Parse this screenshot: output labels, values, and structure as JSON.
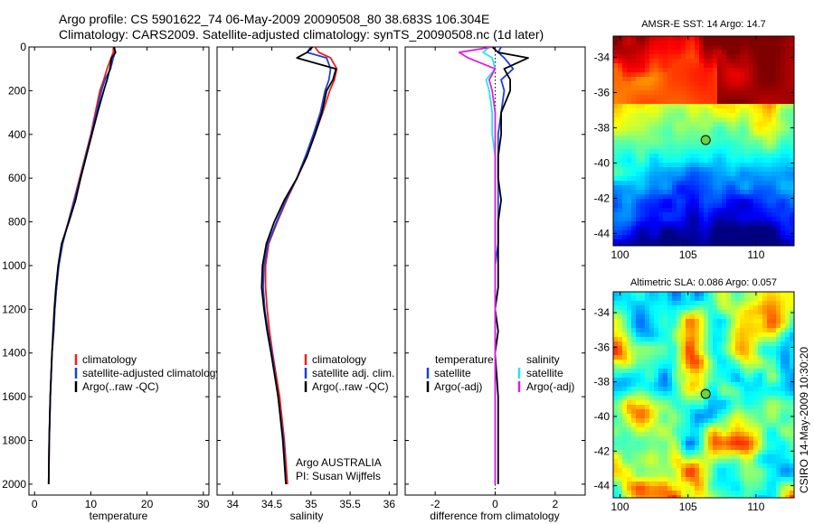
{
  "header": {
    "line1": "Argo profile: CS 5901622_74 06-May-2009 20090508_80 38.683S 106.304E",
    "line2": "Climatology: CARS2009. Satellite-adjusted climatology: synTS_20090508.nc (1d later)"
  },
  "side_label": "CSIRO 14-May-2009 10:30:20",
  "colors": {
    "red": "#e8221c",
    "blue": "#1f3fd8",
    "black": "#000000",
    "cyan": "#22e6f0",
    "magenta": "#e01de0"
  },
  "chart_data": [
    {
      "type": "line",
      "xlabel": "temperature",
      "xlim": [
        -1,
        31
      ],
      "ylim": [
        0,
        2050
      ],
      "xticks": [
        0,
        10,
        20,
        30
      ],
      "yticks": [
        0,
        200,
        400,
        600,
        800,
        1000,
        1200,
        1400,
        1600,
        1800,
        2000
      ],
      "y_reversed": true,
      "legend": [
        "climatology",
        "satellite-adjusted climatology",
        "Argo(..raw -QC)"
      ],
      "series": [
        {
          "name": "climatology",
          "color": "red",
          "x": [
            14.0,
            14.0,
            13.6,
            12.9,
            12.3,
            11.6,
            10.8,
            10.0,
            9.0,
            8.0,
            7.0,
            6.0,
            4.9,
            4.3,
            3.9,
            3.6,
            3.4,
            3.1,
            2.8,
            2.6,
            2.5
          ],
          "y": [
            0,
            25,
            50,
            100,
            150,
            200,
            300,
            400,
            500,
            600,
            700,
            800,
            900,
            1000,
            1100,
            1200,
            1300,
            1400,
            1600,
            1800,
            2000
          ]
        },
        {
          "name": "satellite-adjusted climatology",
          "color": "blue",
          "x": [
            14.2,
            14.3,
            14.0,
            13.5,
            12.5,
            11.9,
            11.0,
            10.1,
            9.1,
            8.1,
            7.1,
            6.0,
            5.0,
            4.3,
            3.9,
            3.6,
            3.4,
            3.1,
            2.8,
            2.6,
            2.5
          ],
          "y": [
            0,
            25,
            50,
            100,
            150,
            200,
            300,
            400,
            500,
            600,
            700,
            800,
            900,
            1000,
            1100,
            1200,
            1300,
            1400,
            1600,
            1800,
            2000
          ]
        },
        {
          "name": "Argo(..raw -QC)",
          "color": "black",
          "x": [
            14.1,
            14.4,
            13.7,
            13.4,
            12.9,
            12.3,
            11.2,
            10.2,
            9.2,
            8.2,
            7.3,
            6.1,
            4.8,
            4.2,
            3.8,
            3.5,
            3.3,
            3.1,
            2.8,
            2.6,
            2.5
          ],
          "y": [
            0,
            25,
            50,
            100,
            150,
            200,
            300,
            400,
            500,
            600,
            700,
            800,
            900,
            1000,
            1100,
            1200,
            1300,
            1400,
            1600,
            1800,
            2000
          ]
        }
      ]
    },
    {
      "type": "line",
      "xlabel": "salinity",
      "xlim": [
        33.8,
        36.1
      ],
      "ylim": [
        0,
        2050
      ],
      "xticks": [
        34,
        34.5,
        35,
        35.5,
        36
      ],
      "y_reversed": true,
      "legend": [
        "climatology",
        "satellite adj. clim.",
        "Argo(..raw -QC)"
      ],
      "annotation": [
        "Argo AUSTRALIA",
        "PI: Susan Wijffels"
      ],
      "series": [
        {
          "name": "climatology",
          "color": "red",
          "x": [
            35.05,
            35.1,
            35.25,
            35.33,
            35.3,
            35.24,
            35.15,
            35.05,
            34.93,
            34.82,
            34.69,
            34.57,
            34.46,
            34.42,
            34.42,
            34.44,
            34.47,
            34.51,
            34.6,
            34.66,
            34.7
          ],
          "y": [
            0,
            25,
            50,
            100,
            150,
            200,
            300,
            400,
            500,
            600,
            700,
            800,
            900,
            1000,
            1100,
            1200,
            1300,
            1400,
            1600,
            1800,
            2000
          ]
        },
        {
          "name": "satellite adj. clim.",
          "color": "blue",
          "x": [
            35.0,
            34.95,
            35.2,
            35.25,
            35.23,
            35.18,
            35.12,
            35.03,
            34.93,
            34.82,
            34.68,
            34.56,
            34.45,
            34.4,
            34.39,
            34.41,
            34.45,
            34.5,
            34.58,
            34.65,
            34.68
          ],
          "y": [
            0,
            25,
            50,
            100,
            150,
            200,
            300,
            400,
            500,
            600,
            700,
            800,
            900,
            1000,
            1100,
            1200,
            1300,
            1400,
            1600,
            1800,
            2000
          ]
        },
        {
          "name": "Argo(..raw -QC)",
          "color": "black",
          "x": [
            35.02,
            34.95,
            34.82,
            35.32,
            35.28,
            35.2,
            35.14,
            35.05,
            34.95,
            34.82,
            34.66,
            34.53,
            34.43,
            34.38,
            34.37,
            34.4,
            34.44,
            34.49,
            34.58,
            34.64,
            34.68
          ],
          "y": [
            0,
            25,
            50,
            100,
            150,
            200,
            300,
            400,
            500,
            600,
            700,
            800,
            900,
            1000,
            1100,
            1200,
            1300,
            1400,
            1600,
            1800,
            2000
          ]
        }
      ]
    },
    {
      "type": "line",
      "xlabel": "difference from climatology",
      "xlim": [
        -3.0,
        3.0
      ],
      "ylim": [
        0,
        2050
      ],
      "xticks": [
        -2,
        0,
        2
      ],
      "y_reversed": true,
      "legend_temperature_title": "temperature",
      "legend_salinity_title": "salinity",
      "legend": [
        "satellite",
        "Argo(-adj)",
        "satellite",
        "Argo(-adj)"
      ],
      "series": [
        {
          "name": "temperature satellite",
          "color": "blue",
          "x": [
            0.2,
            0.1,
            0.3,
            0.6,
            0.2,
            0.3,
            0.2,
            0.1,
            0.1,
            0.1,
            0.1,
            0.1,
            0.1,
            0.0,
            0.0,
            0.0,
            0.0,
            0.0,
            0.0,
            0.0,
            0.0
          ],
          "y": [
            0,
            25,
            50,
            100,
            150,
            200,
            300,
            400,
            500,
            600,
            700,
            800,
            900,
            1000,
            1100,
            1200,
            1300,
            1400,
            1600,
            1800,
            2000
          ]
        },
        {
          "name": "temperature Argo(-adj)",
          "color": "black",
          "x": [
            -0.1,
            0.1,
            1.1,
            0.3,
            0.5,
            0.5,
            0.2,
            0.2,
            0.1,
            0.1,
            0.2,
            0.1,
            0.1,
            0.1,
            0.1,
            0.0,
            0.1,
            0.0,
            0.1,
            0.1,
            0.1
          ],
          "y": [
            0,
            25,
            50,
            100,
            150,
            200,
            300,
            400,
            500,
            600,
            700,
            800,
            900,
            1000,
            1100,
            1200,
            1300,
            1400,
            1600,
            1800,
            2000
          ]
        },
        {
          "name": "salinity satellite",
          "color": "cyan",
          "x": [
            -0.2,
            -0.4,
            -0.1,
            0.0,
            -0.3,
            -0.2,
            -0.1,
            -0.1,
            0.0,
            0.0,
            0.0,
            0.0,
            0.0,
            0.0,
            0.0,
            0.0,
            0.0,
            0.0,
            0.0,
            0.0,
            0.0
          ],
          "y": [
            0,
            25,
            50,
            100,
            150,
            200,
            300,
            400,
            500,
            600,
            700,
            800,
            900,
            1000,
            1100,
            1200,
            1300,
            1400,
            1600,
            1800,
            2000
          ]
        },
        {
          "name": "salinity Argo(-adj)",
          "color": "magenta",
          "x": [
            -0.1,
            -1.2,
            -0.9,
            0.0,
            -0.2,
            -0.1,
            0.0,
            0.0,
            0.0,
            0.0,
            0.0,
            0.0,
            0.0,
            0.0,
            0.0,
            0.0,
            0.0,
            0.0,
            0.0,
            0.0,
            0.0
          ],
          "y": [
            0,
            25,
            50,
            100,
            150,
            200,
            300,
            400,
            500,
            600,
            700,
            800,
            900,
            1000,
            1100,
            1200,
            1300,
            1400,
            1600,
            1800,
            2000
          ]
        }
      ]
    },
    {
      "type": "heatmap",
      "title": "AMSR-E SST: 14 Argo: 14.7",
      "xlim": [
        99.5,
        112.8
      ],
      "ylim": [
        -44.7,
        -32.8
      ],
      "xticks": [
        100,
        105,
        110
      ],
      "yticks": [
        -34,
        -36,
        -38,
        -40,
        -42,
        -44
      ],
      "marker": {
        "lon": 106.3,
        "lat": -38.7
      }
    },
    {
      "type": "heatmap",
      "title": "Altimetric SLA: 0.086 Argo: 0.057",
      "xlim": [
        99.5,
        112.8
      ],
      "ylim": [
        -44.7,
        -32.8
      ],
      "xticks": [
        100,
        105,
        110
      ],
      "yticks": [
        -34,
        -36,
        -38,
        -40,
        -42,
        -44
      ],
      "marker": {
        "lon": 106.3,
        "lat": -38.7
      }
    }
  ]
}
